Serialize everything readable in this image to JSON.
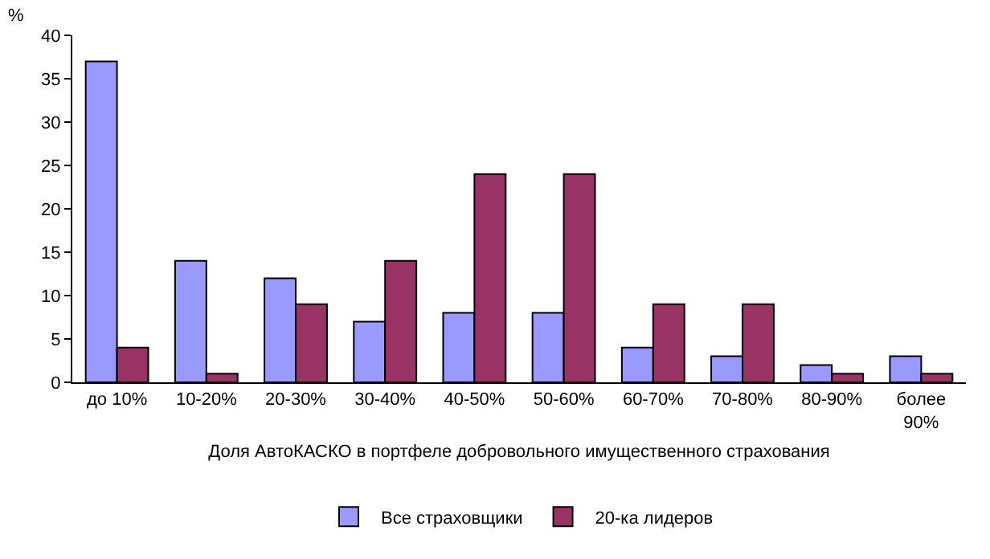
{
  "chart_data": {
    "type": "bar",
    "xlabel": "Доля АвтоКАСКО в портфеле добровольного имущественного страхования",
    "ylabel": "%",
    "categories": [
      "до 10%",
      "10-20%",
      "20-30%",
      "30-40%",
      "40-50%",
      "50-60%",
      "60-70%",
      "70-80%",
      "80-90%",
      "более 90%"
    ],
    "series": [
      {
        "name": "Все страховщики",
        "color": "#9999ff",
        "values": [
          37,
          14,
          12,
          7,
          8,
          8,
          4,
          3,
          2,
          3
        ]
      },
      {
        "name": "20-ка лидеров",
        "color": "#993366",
        "values": [
          4,
          1,
          9,
          14,
          24,
          24,
          9,
          9,
          1,
          1
        ]
      }
    ],
    "ylim": [
      0,
      40
    ],
    "yticks": [
      0,
      5,
      10,
      15,
      20,
      25,
      30,
      35,
      40
    ],
    "grid": false,
    "legend": "bottom"
  }
}
